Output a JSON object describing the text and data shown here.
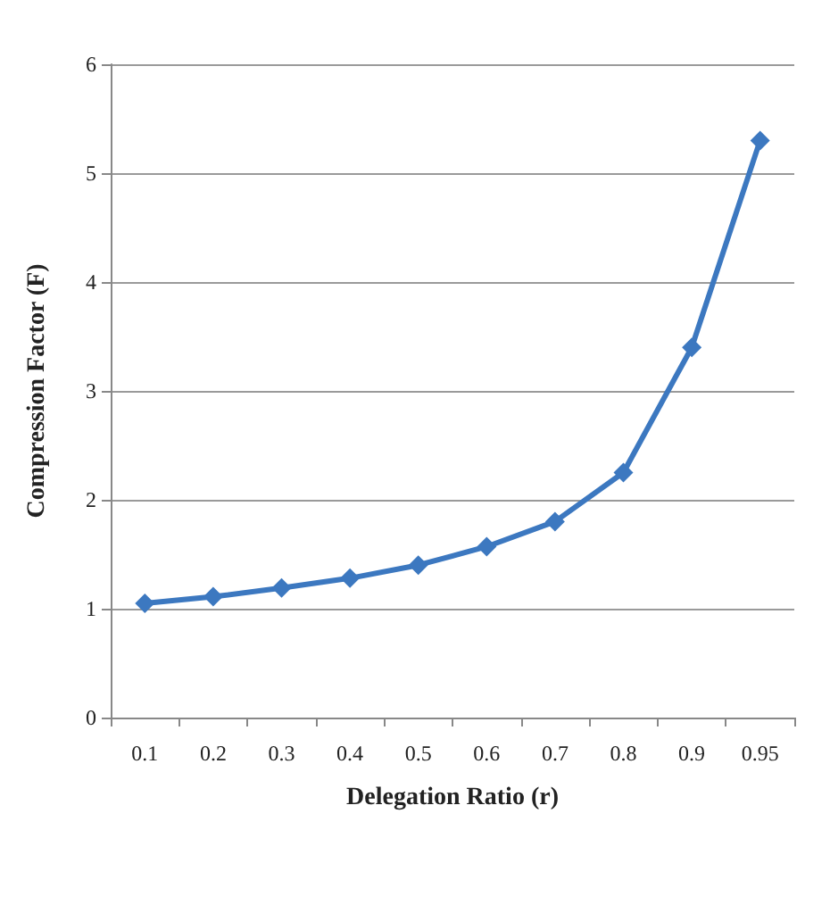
{
  "chart_data": {
    "type": "line",
    "xlabel": "Delegation Ratio (r)",
    "ylabel": "Compression Factor (F)",
    "categories": [
      "0.1",
      "0.2",
      "0.3",
      "0.4",
      "0.5",
      "0.6",
      "0.7",
      "0.8",
      "0.9",
      "0.95"
    ],
    "series": [
      {
        "color": "#3c78c0",
        "values": [
          1.05,
          1.11,
          1.19,
          1.28,
          1.4,
          1.57,
          1.8,
          2.25,
          3.4,
          5.3
        ]
      }
    ],
    "ylim": [
      0,
      6
    ],
    "yticks": [
      0,
      1,
      2,
      3,
      4,
      5,
      6
    ],
    "grid": "y",
    "marker": "diamond",
    "line_style": "solid"
  }
}
